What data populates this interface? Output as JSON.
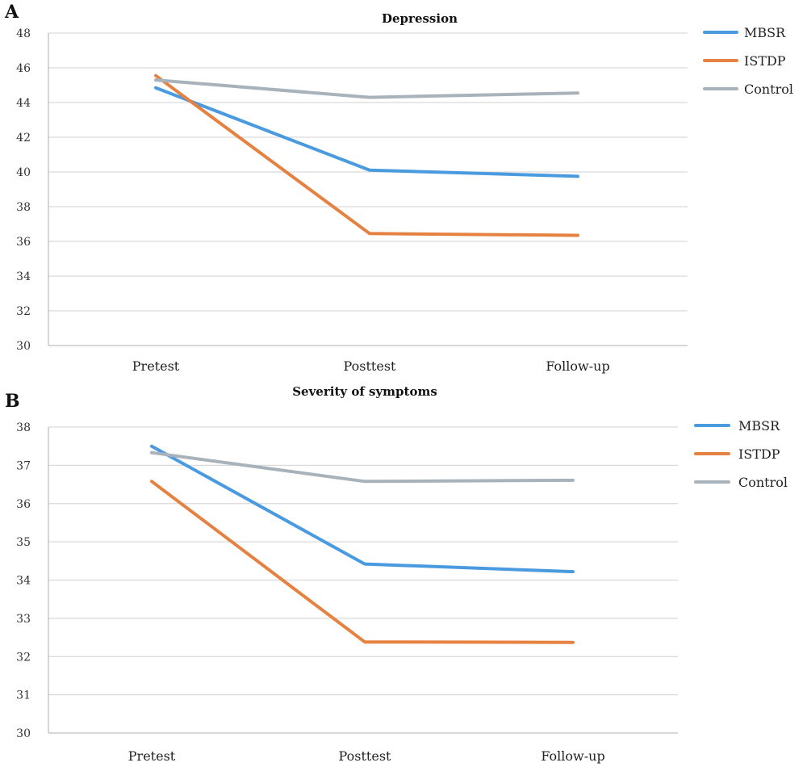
{
  "colors": {
    "MBSR": "#4a9ae0",
    "ISTDP": "#e58241",
    "Control": "#a8b2ba"
  },
  "chart_data": [
    {
      "panel": "A",
      "type": "line",
      "title": "Depression",
      "xlabel": "",
      "ylabel": "",
      "categories": [
        "Pretest",
        "Posttest",
        "Follow-up"
      ],
      "ylim": [
        30,
        48
      ],
      "yticks": [
        30,
        32,
        34,
        36,
        38,
        40,
        42,
        44,
        46,
        48
      ],
      "grid": true,
      "legend_position": "top-right",
      "series": [
        {
          "name": "MBSR",
          "values": [
            44.85,
            40.1,
            39.75
          ]
        },
        {
          "name": "ISTDP",
          "values": [
            45.55,
            36.45,
            36.35
          ]
        },
        {
          "name": "Control",
          "values": [
            45.3,
            44.3,
            44.55
          ]
        }
      ]
    },
    {
      "panel": "B",
      "type": "line",
      "title": "Severity of symptoms",
      "xlabel": "",
      "ylabel": "",
      "categories": [
        "Pretest",
        "Posttest",
        "Follow-up"
      ],
      "ylim": [
        30,
        38
      ],
      "yticks": [
        30,
        31,
        32,
        33,
        34,
        35,
        36,
        37,
        38
      ],
      "grid": true,
      "legend_position": "top-right",
      "series": [
        {
          "name": "MBSR",
          "values": [
            37.5,
            34.42,
            34.22
          ]
        },
        {
          "name": "ISTDP",
          "values": [
            36.58,
            32.38,
            32.37
          ]
        },
        {
          "name": "Control",
          "values": [
            37.33,
            36.58,
            36.61
          ]
        }
      ]
    }
  ]
}
